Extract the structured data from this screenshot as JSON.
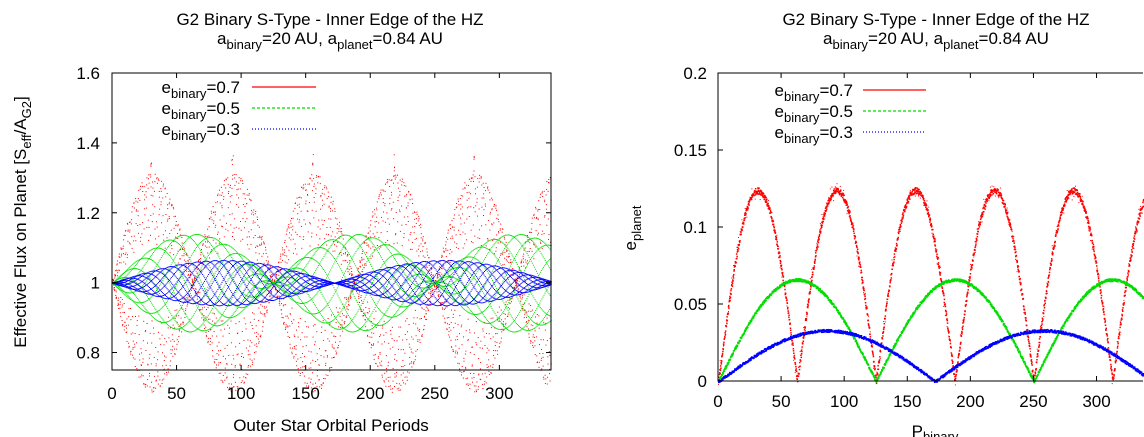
{
  "chart_data": [
    {
      "type": "scatter",
      "title": "G2 Binary S-Type - Inner Edge of the HZ",
      "subtitle": {
        "a1": "a",
        "a1_sub": "binary",
        "a1_val": "=20 AU, ",
        "a2": "a",
        "a2_sub": "planet",
        "a2_val": "=0.84 AU"
      },
      "xlabel": "Outer Star Orbital Periods",
      "ylabel": {
        "main": "Effective Flux on Planet [S",
        "sub1": "eff",
        "mid": "/A",
        "sub2": "G2",
        "end": "]"
      },
      "xlim": [
        0,
        340
      ],
      "ylim": [
        0.75,
        1.6
      ],
      "xticks": [
        "0",
        "50",
        "100",
        "150",
        "200",
        "250",
        "300"
      ],
      "yticks": [
        "0.8",
        "1",
        "1.2",
        "1.4",
        "1.6"
      ],
      "legend_position": "top-left",
      "series": [
        {
          "name_main": "e",
          "name_sub": "binary",
          "name_val": "=0.7",
          "color": "#ff0000",
          "amp": 0.31,
          "spread_period": 62.5,
          "phase_period": 20.7,
          "peaks_x": [
            30,
            93,
            155,
            218,
            280,
            343
          ]
        },
        {
          "name_main": "e",
          "name_sub": "binary",
          "name_val": "=0.5",
          "color": "#00dd00",
          "amp": 0.14,
          "spread_period": 125,
          "phase_period": 18
        },
        {
          "name_main": "e",
          "name_sub": "binary",
          "name_val": "=0.3",
          "color": "#0000ff",
          "amp": 0.065,
          "spread_period": 172,
          "phase_period": 16
        }
      ]
    },
    {
      "type": "scatter",
      "title": "G2 Binary S-Type - Inner Edge of the HZ",
      "subtitle": {
        "a1": "a",
        "a1_sub": "binary",
        "a1_val": "=20 AU, ",
        "a2": "a",
        "a2_sub": "planet",
        "a2_val": "=0.84 AU"
      },
      "xlabel": {
        "main": "P",
        "sub": "binary"
      },
      "ylabel": {
        "main": "e",
        "sub": "planet"
      },
      "xlim": [
        0,
        340
      ],
      "ylim": [
        0,
        0.2
      ],
      "xticks": [
        "0",
        "50",
        "100",
        "150",
        "200",
        "250",
        "300"
      ],
      "yticks": [
        "0",
        "0.05",
        "0.1",
        "0.15",
        "0.2"
      ],
      "legend_position": "top-left",
      "series": [
        {
          "name_main": "e",
          "name_sub": "binary",
          "name_val": "=0.7",
          "color": "#ff0000",
          "max": 0.124,
          "period": 62.5
        },
        {
          "name_main": "e",
          "name_sub": "binary",
          "name_val": "=0.5",
          "color": "#00dd00",
          "max": 0.066,
          "period": 125
        },
        {
          "name_main": "e",
          "name_sub": "binary",
          "name_val": "=0.3",
          "color": "#0000ff",
          "max": 0.033,
          "period": 172
        }
      ]
    }
  ]
}
